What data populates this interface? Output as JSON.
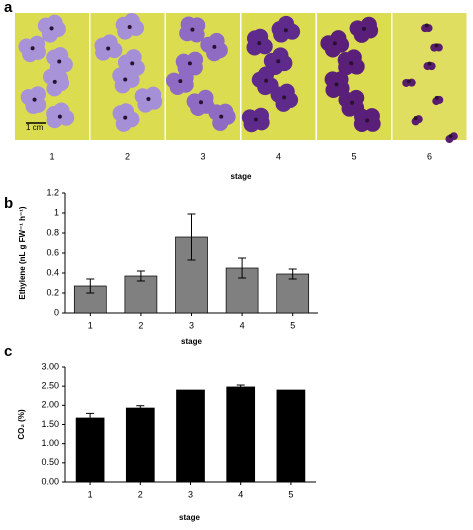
{
  "figure": {
    "panels": [
      "a",
      "b",
      "c"
    ],
    "photo_labels": [
      "1",
      "2",
      "3",
      "4",
      "5",
      "6"
    ],
    "photo_xlabel": "stage",
    "scale_bar": "1 cm"
  },
  "chart_data": [
    {
      "type": "bar",
      "ylabel": "Ethylene (nL g FW⁻¹ h⁻¹)",
      "xlabel": "stage",
      "categories": [
        "1",
        "2",
        "3",
        "4",
        "5"
      ],
      "values": [
        0.27,
        0.37,
        0.76,
        0.45,
        0.39
      ],
      "errors": [
        0.07,
        0.05,
        0.23,
        0.1,
        0.05
      ],
      "color": "#808080",
      "ylim": [
        0,
        1.2
      ],
      "yticks": [
        0,
        0.2,
        0.4,
        0.6,
        0.8,
        1,
        1.2
      ]
    },
    {
      "type": "bar",
      "ylabel": "CO₂ (%)",
      "xlabel": "stage",
      "categories": [
        "1",
        "2",
        "3",
        "4",
        "5"
      ],
      "values": [
        1.67,
        1.93,
        2.4,
        2.48,
        2.4
      ],
      "errors": [
        0.12,
        0.06,
        null,
        0.05,
        null
      ],
      "color": "#000000",
      "ylim": [
        0,
        3
      ],
      "yticks": [
        {
          "value": 0,
          "label": "0.00"
        },
        {
          "value": 0.5,
          "label": "0.50"
        },
        {
          "value": 1,
          "label": "1.00"
        },
        {
          "value": 1.5,
          "label": "1.50"
        },
        {
          "value": 2,
          "label": "2.00"
        },
        {
          "value": 2.5,
          "label": "2.50"
        },
        {
          "value": 3,
          "label": "3.00"
        }
      ]
    }
  ]
}
